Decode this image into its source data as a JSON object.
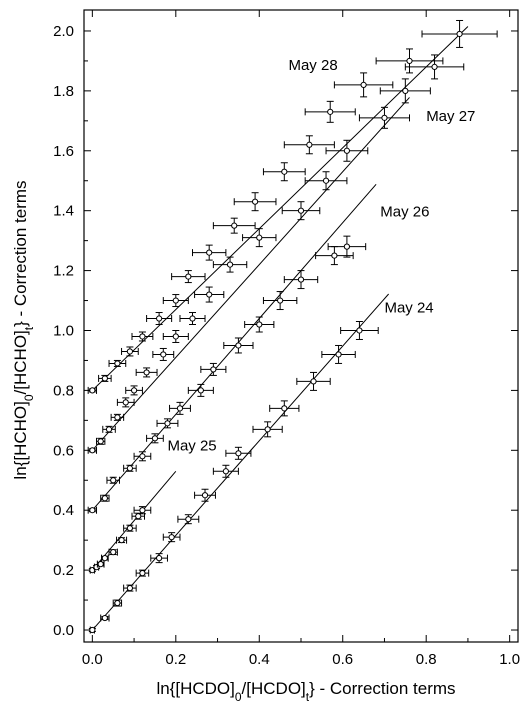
{
  "chart_data": {
    "type": "scatter",
    "xlabel": "ln{[HCDO]0/[HCDO]t} - Correction terms",
    "ylabel": "ln{[HCHO]0/[HCHO]t} - Correction terms",
    "xlim": [
      -0.02,
      1.02
    ],
    "ylim": [
      -0.04,
      2.07
    ],
    "xticks": [
      "0.0",
      "0.2",
      "0.4",
      "0.6",
      "0.8",
      "1.0"
    ],
    "yticks": [
      "0.0",
      "0.2",
      "0.4",
      "0.6",
      "0.8",
      "1.0",
      "1.2",
      "1.4",
      "1.6",
      "1.8",
      "2.0"
    ],
    "grid": false,
    "series": [
      {
        "name": "May 28",
        "fit": {
          "intercept": 0.8,
          "slope": 1.35,
          "x_range": [
            0,
            0.9
          ]
        },
        "points": [
          [
            0.0,
            0.8
          ],
          [
            0.03,
            0.84
          ],
          [
            0.06,
            0.89
          ],
          [
            0.09,
            0.93
          ],
          [
            0.12,
            0.98
          ],
          [
            0.16,
            1.04
          ],
          [
            0.2,
            1.1
          ],
          [
            0.23,
            1.18
          ],
          [
            0.28,
            1.26
          ],
          [
            0.34,
            1.35
          ],
          [
            0.39,
            1.43
          ],
          [
            0.46,
            1.53
          ],
          [
            0.52,
            1.62
          ],
          [
            0.57,
            1.73
          ],
          [
            0.65,
            1.82
          ],
          [
            0.76,
            1.9
          ],
          [
            0.88,
            1.99
          ]
        ],
        "xerr": [
          0.01,
          0.015,
          0.02,
          0.02,
          0.025,
          0.03,
          0.03,
          0.04,
          0.04,
          0.05,
          0.05,
          0.05,
          0.06,
          0.06,
          0.07,
          0.08,
          0.09
        ],
        "yerr": [
          0.005,
          0.01,
          0.01,
          0.015,
          0.015,
          0.02,
          0.02,
          0.02,
          0.025,
          0.025,
          0.03,
          0.03,
          0.03,
          0.035,
          0.04,
          0.04,
          0.045
        ]
      },
      {
        "name": "May 27",
        "fit": {
          "intercept": 0.6,
          "slope": 1.55,
          "x_range": [
            0,
            0.76
          ]
        },
        "points": [
          [
            0.0,
            0.6
          ],
          [
            0.02,
            0.63
          ],
          [
            0.04,
            0.67
          ],
          [
            0.06,
            0.71
          ],
          [
            0.08,
            0.76
          ],
          [
            0.1,
            0.8
          ],
          [
            0.13,
            0.86
          ],
          [
            0.17,
            0.92
          ],
          [
            0.2,
            0.98
          ],
          [
            0.24,
            1.04
          ],
          [
            0.28,
            1.12
          ],
          [
            0.33,
            1.22
          ],
          [
            0.4,
            1.31
          ],
          [
            0.5,
            1.4
          ],
          [
            0.56,
            1.5
          ],
          [
            0.61,
            1.6
          ],
          [
            0.7,
            1.71
          ],
          [
            0.75,
            1.8
          ],
          [
            0.82,
            1.88
          ]
        ],
        "xerr": [
          0.01,
          0.01,
          0.015,
          0.015,
          0.02,
          0.02,
          0.025,
          0.025,
          0.03,
          0.03,
          0.035,
          0.04,
          0.04,
          0.045,
          0.05,
          0.05,
          0.06,
          0.06,
          0.07
        ],
        "yerr": [
          0.005,
          0.01,
          0.01,
          0.01,
          0.015,
          0.015,
          0.015,
          0.02,
          0.02,
          0.02,
          0.025,
          0.025,
          0.03,
          0.03,
          0.03,
          0.035,
          0.035,
          0.04,
          0.04
        ]
      },
      {
        "name": "May 26",
        "fit": {
          "intercept": 0.4,
          "slope": 1.6,
          "x_range": [
            0,
            0.68
          ]
        },
        "points": [
          [
            0.0,
            0.4
          ],
          [
            0.03,
            0.44
          ],
          [
            0.05,
            0.5
          ],
          [
            0.09,
            0.54
          ],
          [
            0.12,
            0.58
          ],
          [
            0.15,
            0.64
          ],
          [
            0.18,
            0.69
          ],
          [
            0.21,
            0.74
          ],
          [
            0.26,
            0.8
          ],
          [
            0.29,
            0.87
          ],
          [
            0.35,
            0.95
          ],
          [
            0.4,
            1.02
          ],
          [
            0.45,
            1.1
          ],
          [
            0.5,
            1.17
          ],
          [
            0.58,
            1.25
          ],
          [
            0.61,
            1.28
          ]
        ],
        "xerr": [
          0.01,
          0.01,
          0.015,
          0.015,
          0.02,
          0.02,
          0.025,
          0.025,
          0.03,
          0.03,
          0.035,
          0.035,
          0.04,
          0.04,
          0.045,
          0.045
        ],
        "yerr": [
          0.005,
          0.01,
          0.01,
          0.01,
          0.015,
          0.015,
          0.015,
          0.02,
          0.02,
          0.02,
          0.025,
          0.025,
          0.03,
          0.03,
          0.03,
          0.035
        ]
      },
      {
        "name": "May 25",
        "fit": {
          "intercept": 0.2,
          "slope": 1.65,
          "x_range": [
            0,
            0.2
          ]
        },
        "points": [
          [
            0.0,
            0.2
          ],
          [
            0.01,
            0.21
          ],
          [
            0.02,
            0.22
          ],
          [
            0.03,
            0.24
          ],
          [
            0.05,
            0.26
          ],
          [
            0.07,
            0.3
          ],
          [
            0.09,
            0.34
          ],
          [
            0.11,
            0.38
          ],
          [
            0.12,
            0.4
          ]
        ],
        "xerr": [
          0.005,
          0.005,
          0.008,
          0.008,
          0.01,
          0.012,
          0.015,
          0.015,
          0.02
        ],
        "yerr": [
          0.005,
          0.005,
          0.006,
          0.006,
          0.008,
          0.008,
          0.01,
          0.01,
          0.012
        ]
      },
      {
        "name": "May 24",
        "fit": {
          "intercept": 0.0,
          "slope": 1.58,
          "x_range": [
            0,
            0.71
          ]
        },
        "points": [
          [
            0.0,
            0.0
          ],
          [
            0.03,
            0.04
          ],
          [
            0.06,
            0.09
          ],
          [
            0.09,
            0.14
          ],
          [
            0.12,
            0.19
          ],
          [
            0.16,
            0.24
          ],
          [
            0.19,
            0.31
          ],
          [
            0.23,
            0.37
          ],
          [
            0.27,
            0.45
          ],
          [
            0.32,
            0.53
          ],
          [
            0.35,
            0.59
          ],
          [
            0.42,
            0.67
          ],
          [
            0.46,
            0.74
          ],
          [
            0.53,
            0.83
          ],
          [
            0.59,
            0.92
          ],
          [
            0.64,
            1.0
          ]
        ],
        "xerr": [
          0.005,
          0.01,
          0.01,
          0.015,
          0.015,
          0.02,
          0.02,
          0.025,
          0.025,
          0.03,
          0.03,
          0.035,
          0.035,
          0.04,
          0.04,
          0.045
        ],
        "yerr": [
          0.005,
          0.005,
          0.01,
          0.01,
          0.01,
          0.015,
          0.015,
          0.015,
          0.02,
          0.02,
          0.02,
          0.025,
          0.025,
          0.03,
          0.03,
          0.03
        ]
      }
    ],
    "annotations": [
      {
        "text": "May 28",
        "x": 0.47,
        "y": 1.87
      },
      {
        "text": "May 27",
        "x": 0.8,
        "y": 1.7
      },
      {
        "text": "May 26",
        "x": 0.69,
        "y": 1.38
      },
      {
        "text": "May 25",
        "x": 0.18,
        "y": 0.6
      },
      {
        "text": "May 24",
        "x": 0.7,
        "y": 1.06
      }
    ]
  }
}
